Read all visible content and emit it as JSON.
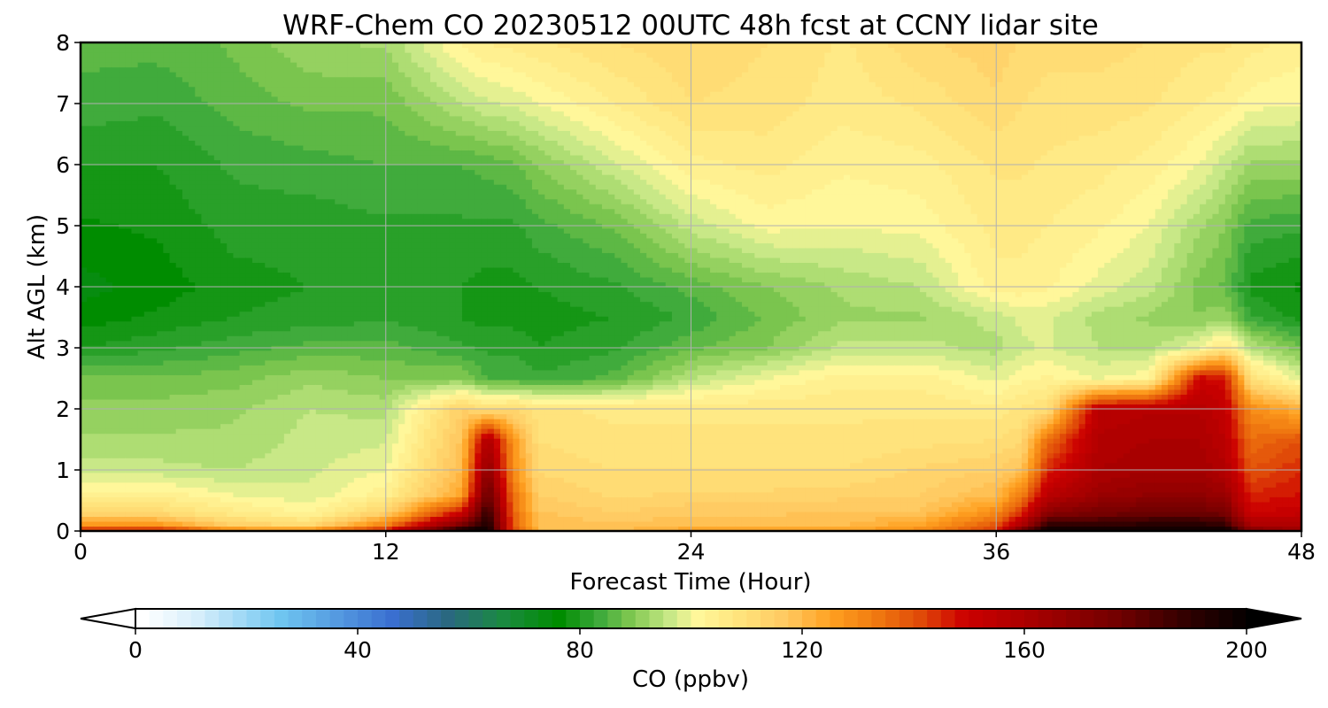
{
  "chart_data": {
    "type": "heatmap",
    "title": "WRF-Chem CO  20230512 00UTC 48h fcst at CCNY lidar site",
    "xlabel": "Forecast Time (Hour)",
    "ylabel": "Alt AGL (km)",
    "xlim": [
      0,
      48
    ],
    "ylim": [
      0,
      8
    ],
    "xticks": [
      0,
      12,
      24,
      36,
      48
    ],
    "yticks": [
      0,
      1,
      2,
      3,
      4,
      5,
      6,
      7,
      8
    ],
    "grid": true,
    "x_hours": [
      0,
      3,
      6,
      9,
      12,
      15,
      16,
      17,
      18,
      21,
      24,
      27,
      30,
      33,
      36,
      37,
      38,
      40,
      42,
      44,
      45,
      46,
      48
    ],
    "z_km": [
      0,
      0.1,
      0.3,
      0.6,
      1.0,
      1.5,
      2.0,
      2.5,
      3.0,
      3.5,
      4.0,
      5.0,
      6.0,
      7.0,
      8.0
    ],
    "co_ppbv": [
      [
        150,
        128,
        112,
        104,
        96,
        93,
        91,
        88,
        80,
        76,
        74,
        77,
        80,
        84,
        86
      ],
      [
        150,
        128,
        112,
        104,
        96,
        93,
        91,
        88,
        82,
        78,
        76,
        78,
        80,
        83,
        86
      ],
      [
        132,
        115,
        106,
        100,
        95,
        93,
        92,
        89,
        84,
        80,
        79,
        81,
        83,
        86,
        88
      ],
      [
        132,
        112,
        102,
        98,
        97,
        96,
        95,
        92,
        86,
        81,
        80,
        81,
        84,
        88,
        92
      ],
      [
        150,
        132,
        115,
        104,
        100,
        97,
        94,
        90,
        86,
        82,
        81,
        82,
        85,
        88,
        93
      ],
      [
        200,
        175,
        150,
        125,
        120,
        118,
        115,
        90,
        83,
        80,
        80,
        82,
        85,
        95,
        103
      ],
      [
        200,
        195,
        190,
        180,
        170,
        160,
        110,
        85,
        82,
        79,
        79,
        82,
        86,
        97,
        105
      ],
      [
        140,
        140,
        138,
        135,
        130,
        128,
        112,
        85,
        82,
        79,
        79,
        82,
        87,
        98,
        106
      ],
      [
        120,
        120,
        118,
        115,
        112,
        110,
        108,
        83,
        80,
        79,
        80,
        84,
        90,
        100,
        107
      ],
      [
        120,
        118,
        115,
        112,
        110,
        108,
        107,
        86,
        82,
        80,
        82,
        88,
        97,
        105,
        110
      ],
      [
        125,
        120,
        117,
        113,
        110,
        108,
        107,
        95,
        87,
        83,
        86,
        96,
        104,
        110,
        112
      ],
      [
        125,
        120,
        117,
        113,
        110,
        108,
        107,
        100,
        90,
        88,
        90,
        101,
        106,
        109,
        110
      ],
      [
        125,
        120,
        118,
        114,
        110,
        108,
        107,
        104,
        96,
        92,
        93,
        100,
        103,
        106,
        107
      ],
      [
        130,
        125,
        118,
        115,
        113,
        109,
        107,
        104,
        96,
        92,
        95,
        101,
        104,
        108,
        112
      ],
      [
        145,
        140,
        130,
        120,
        115,
        110,
        106,
        99,
        94,
        96,
        104,
        106,
        108,
        112,
        114
      ],
      [
        180,
        160,
        145,
        132,
        118,
        112,
        108,
        102,
        97,
        98,
        104,
        106,
        108,
        110,
        112
      ],
      [
        200,
        190,
        170,
        155,
        145,
        135,
        110,
        103,
        98,
        98,
        103,
        105,
        107,
        109,
        111
      ],
      [
        200,
        190,
        175,
        165,
        160,
        158,
        155,
        100,
        95,
        94,
        99,
        103,
        106,
        109,
        111
      ],
      [
        200,
        192,
        178,
        168,
        162,
        160,
        157,
        102,
        94,
        92,
        96,
        100,
        104,
        108,
        110
      ],
      [
        200,
        192,
        178,
        168,
        162,
        160,
        157,
        150,
        100,
        90,
        89,
        93,
        100,
        105,
        108
      ],
      [
        200,
        190,
        175,
        165,
        158,
        155,
        152,
        148,
        108,
        92,
        87,
        90,
        96,
        104,
        108
      ],
      [
        175,
        160,
        150,
        145,
        140,
        135,
        130,
        110,
        95,
        83,
        79,
        84,
        92,
        101,
        106
      ],
      [
        165,
        158,
        152,
        148,
        145,
        140,
        122,
        98,
        88,
        79,
        77,
        83,
        92,
        100,
        104
      ]
    ],
    "colorbar": {
      "label": "CO  (ppbv)",
      "ticks": [
        0,
        40,
        80,
        120,
        160,
        200
      ],
      "min": 0,
      "max": 200,
      "step": 2.5,
      "extend": "both",
      "colormap_stops": [
        [
          0,
          "#ffffff"
        ],
        [
          10,
          "#d6eefb"
        ],
        [
          25,
          "#6fc5f0"
        ],
        [
          45,
          "#3a6fd0"
        ],
        [
          55,
          "#2a6880"
        ],
        [
          65,
          "#1a8a40"
        ],
        [
          75,
          "#008c00"
        ],
        [
          82,
          "#3aa83a"
        ],
        [
          88,
          "#80c850"
        ],
        [
          95,
          "#c8e887"
        ],
        [
          100,
          "#fff79a"
        ],
        [
          108,
          "#ffe27a"
        ],
        [
          116,
          "#ffc860"
        ],
        [
          124,
          "#ffa020"
        ],
        [
          132,
          "#f07a10"
        ],
        [
          140,
          "#e04a08"
        ],
        [
          148,
          "#cc0000"
        ],
        [
          160,
          "#a80000"
        ],
        [
          176,
          "#700000"
        ],
        [
          188,
          "#300000"
        ],
        [
          200,
          "#000000"
        ]
      ]
    }
  }
}
